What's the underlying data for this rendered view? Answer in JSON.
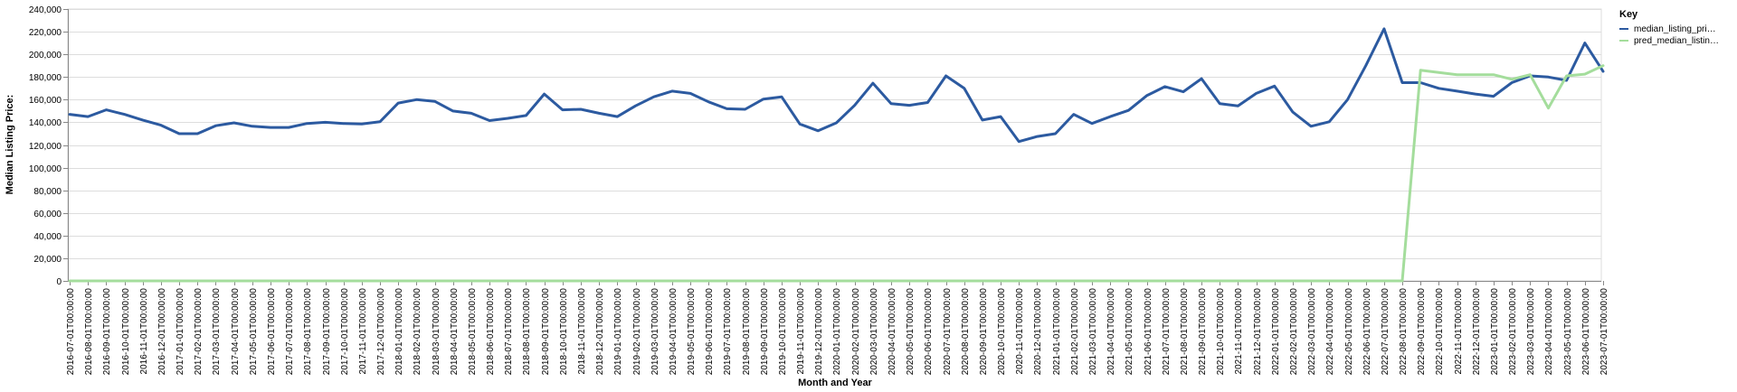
{
  "chart_data": {
    "type": "line",
    "xlabel": "Month and Year",
    "ylabel": "Median Listing Price:",
    "ylim": [
      0,
      240000
    ],
    "yticks": [
      "0",
      "20,000",
      "40,000",
      "60,000",
      "80,000",
      "100,000",
      "120,000",
      "140,000",
      "160,000",
      "180,000",
      "200,000",
      "220,000",
      "240,000"
    ],
    "grid": true,
    "legend": {
      "title": "Key",
      "position": "top-right"
    },
    "x": [
      "2016-07-01T00:00:00",
      "2016-08-01T00:00:00",
      "2016-09-01T00:00:00",
      "2016-10-01T00:00:00",
      "2016-11-01T00:00:00",
      "2016-12-01T00:00:00",
      "2017-01-01T00:00:00",
      "2017-02-01T00:00:00",
      "2017-03-01T00:00:00",
      "2017-04-01T00:00:00",
      "2017-05-01T00:00:00",
      "2017-06-01T00:00:00",
      "2017-07-01T00:00:00",
      "2017-08-01T00:00:00",
      "2017-09-01T00:00:00",
      "2017-10-01T00:00:00",
      "2017-11-01T00:00:00",
      "2017-12-01T00:00:00",
      "2018-01-01T00:00:00",
      "2018-02-01T00:00:00",
      "2018-03-01T00:00:00",
      "2018-04-01T00:00:00",
      "2018-05-01T00:00:00",
      "2018-06-01T00:00:00",
      "2018-07-01T00:00:00",
      "2018-08-01T00:00:00",
      "2018-09-01T00:00:00",
      "2018-10-01T00:00:00",
      "2018-11-01T00:00:00",
      "2018-12-01T00:00:00",
      "2019-01-01T00:00:00",
      "2019-02-01T00:00:00",
      "2019-03-01T00:00:00",
      "2019-04-01T00:00:00",
      "2019-05-01T00:00:00",
      "2019-06-01T00:00:00",
      "2019-07-01T00:00:00",
      "2019-08-01T00:00:00",
      "2019-09-01T00:00:00",
      "2019-10-01T00:00:00",
      "2019-11-01T00:00:00",
      "2019-12-01T00:00:00",
      "2020-01-01T00:00:00",
      "2020-02-01T00:00:00",
      "2020-03-01T00:00:00",
      "2020-04-01T00:00:00",
      "2020-05-01T00:00:00",
      "2020-06-01T00:00:00",
      "2020-07-01T00:00:00",
      "2020-08-01T00:00:00",
      "2020-09-01T00:00:00",
      "2020-10-01T00:00:00",
      "2020-11-01T00:00:00",
      "2020-12-01T00:00:00",
      "2021-01-01T00:00:00",
      "2021-02-01T00:00:00",
      "2021-03-01T00:00:00",
      "2021-04-01T00:00:00",
      "2021-05-01T00:00:00",
      "2021-06-01T00:00:00",
      "2021-07-01T00:00:00",
      "2021-08-01T00:00:00",
      "2021-09-01T00:00:00",
      "2021-10-01T00:00:00",
      "2021-11-01T00:00:00",
      "2021-12-01T00:00:00",
      "2022-01-01T00:00:00",
      "2022-02-01T00:00:00",
      "2022-03-01T00:00:00",
      "2022-04-01T00:00:00",
      "2022-05-01T00:00:00",
      "2022-06-01T00:00:00",
      "2022-07-01T00:00:00",
      "2022-08-01T00:00:00",
      "2022-09-01T00:00:00",
      "2022-10-01T00:00:00",
      "2022-11-01T00:00:00",
      "2022-12-01T00:00:00",
      "2023-01-01T00:00:00",
      "2023-02-01T00:00:00",
      "2023-03-01T00:00:00",
      "2023-04-01T00:00:00",
      "2023-05-01T00:00:00",
      "2023-06-01T00:00:00",
      "2023-07-01T00:00:00"
    ],
    "series": [
      {
        "name": "median_listing_pri…",
        "color": "#2c5aa0",
        "values": [
          147000,
          145000,
          151000,
          147000,
          142000,
          137500,
          130000,
          130000,
          137000,
          139500,
          136500,
          135500,
          135500,
          139000,
          140000,
          139000,
          138500,
          140500,
          157000,
          160000,
          158500,
          150000,
          148000,
          141500,
          143500,
          146000,
          165000,
          151000,
          151500,
          148000,
          145000,
          154500,
          162500,
          167500,
          165500,
          158000,
          152000,
          151500,
          160500,
          162500,
          138500,
          132500,
          139500,
          155000,
          174500,
          156500,
          155000,
          157500,
          181000,
          170000,
          142000,
          145000,
          123000,
          127500,
          130000,
          147000,
          139000,
          145000,
          150500,
          163500,
          171500,
          167000,
          178500,
          156500,
          154500,
          165500,
          172000,
          149000,
          136500,
          140500,
          160000,
          190000,
          222500,
          175000,
          175000,
          170000,
          167500,
          165000,
          163000,
          175000,
          181000,
          180000,
          177000,
          210000,
          185000
        ]
      },
      {
        "name": "pred_median_listin…",
        "color": "#a4dd9c",
        "values": [
          0,
          0,
          0,
          0,
          0,
          0,
          0,
          0,
          0,
          0,
          0,
          0,
          0,
          0,
          0,
          0,
          0,
          0,
          0,
          0,
          0,
          0,
          0,
          0,
          0,
          0,
          0,
          0,
          0,
          0,
          0,
          0,
          0,
          0,
          0,
          0,
          0,
          0,
          0,
          0,
          0,
          0,
          0,
          0,
          0,
          0,
          0,
          0,
          0,
          0,
          0,
          0,
          0,
          0,
          0,
          0,
          0,
          0,
          0,
          0,
          0,
          0,
          0,
          0,
          0,
          0,
          0,
          0,
          0,
          0,
          0,
          0,
          0,
          0,
          186000,
          184000,
          182000,
          182000,
          182000,
          178000,
          182000,
          152500,
          181000,
          182500,
          190000
        ]
      }
    ]
  }
}
